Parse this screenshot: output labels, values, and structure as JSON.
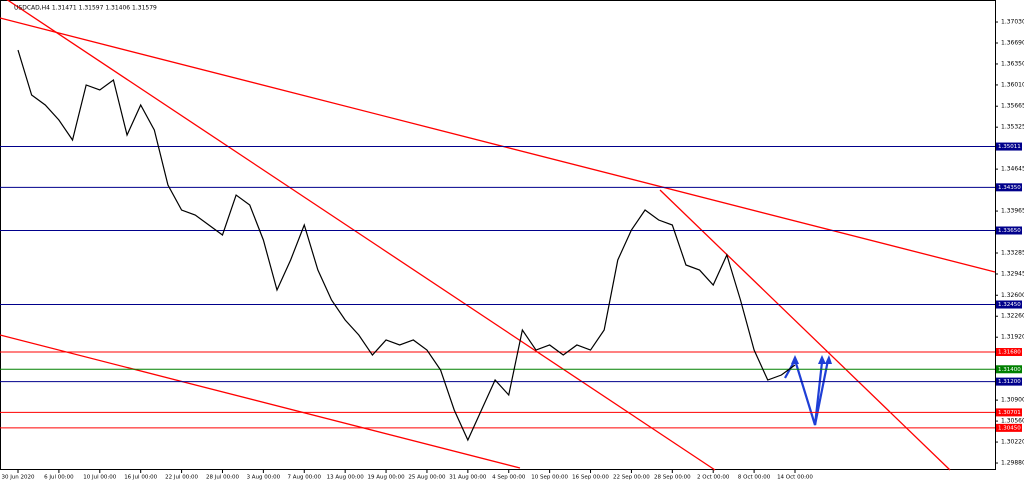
{
  "chart_data": {
    "type": "line",
    "title": "USDCAD,H4  1.31471 1.31597 1.31406 1.31579",
    "categories": [
      "30 Jun 2020",
      null,
      null,
      "6 Jul 00:00",
      null,
      null,
      "10 Jul 00:00",
      null,
      null,
      "16 Jul 00:00",
      null,
      null,
      "22 Jul 00:00",
      null,
      null,
      "28 Jul 00:00",
      null,
      null,
      "3 Aug 00:00",
      null,
      null,
      "7 Aug 00:00",
      null,
      null,
      "13 Aug 00:00",
      null,
      null,
      "19 Aug 00:00",
      null,
      null,
      "25 Aug 00:00",
      null,
      null,
      "31 Aug 00:00",
      null,
      null,
      "4 Sep 00:00",
      null,
      null,
      "10 Sep 00:00",
      null,
      null,
      "16 Sep 00:00",
      null,
      null,
      "22 Sep 00:00",
      null,
      null,
      "28 Sep 00:00",
      null,
      null,
      "2 Oct 00:00",
      null,
      null,
      "8 Oct 00:00",
      null,
      null,
      "14 Oct 00:00"
    ],
    "values": [
      1.36576,
      1.35847,
      1.35685,
      1.35441,
      1.35117,
      1.36009,
      1.35928,
      1.3609,
      1.35198,
      1.35685,
      1.35279,
      1.34388,
      1.33982,
      1.33901,
      1.33739,
      1.33577,
      1.34225,
      1.34063,
      1.33496,
      1.32685,
      1.33172,
      1.33739,
      1.33009,
      1.32523,
      1.32199,
      1.31956,
      1.31631,
      1.31875,
      1.31794,
      1.31875,
      1.31712,
      1.31388,
      1.3074,
      1.30253,
      1.3074,
      1.31226,
      1.30983,
      1.32037,
      1.31712,
      1.31794,
      1.31631,
      1.31794,
      1.31712,
      1.32037,
      1.33172,
      1.33658,
      1.33982,
      1.3382,
      1.33739,
      1.33091,
      1.33009,
      1.32766,
      1.33253,
      1.32523,
      1.31712,
      1.31226,
      1.31307,
      1.31469
    ],
    "color": "#000000",
    "ylim": [
      1.29767,
      1.37387
    ],
    "yticks": [
      {
        "value": 1.3703,
        "label": "1.37030"
      },
      {
        "value": 1.3669,
        "label": "1.36690"
      },
      {
        "value": 1.3635,
        "label": "1.36350"
      },
      {
        "value": 1.3601,
        "label": "1.36010"
      },
      1.35665,
      1.35325,
      1.34645,
      1.33965,
      1.33285,
      1.32945,
      {
        "value": 1.326,
        "label": "1.32600"
      },
      {
        "value": 1.3226,
        "label": "1.32260"
      },
      {
        "value": 1.3192,
        "label": "1.31920"
      },
      {
        "value": 1.309,
        "label": "1.30900"
      },
      {
        "value": 1.3056,
        "label": "1.30560"
      },
      {
        "value": 1.3022,
        "label": "1.30220"
      },
      {
        "value": 1.2988,
        "label": "1.29880"
      }
    ],
    "levels": {
      "values": [
        1.35011,
        1.3435,
        1.3365,
        1.3245,
        1.3168,
        1.314,
        1.312,
        1.30701,
        1.3045
      ],
      "value_labels": [
        "1.35011",
        "1.34350",
        "1.33650",
        "1.32450",
        "1.31680",
        "1.31400",
        "1.31200",
        "1.30701",
        "1.30450"
      ],
      "colors": [
        "#00008b",
        "#00008b",
        "#00008b",
        "#00008b",
        "#ff0000",
        "#008000",
        "#00008b",
        "#ff0000",
        "#ff0000"
      ]
    }
  }
}
